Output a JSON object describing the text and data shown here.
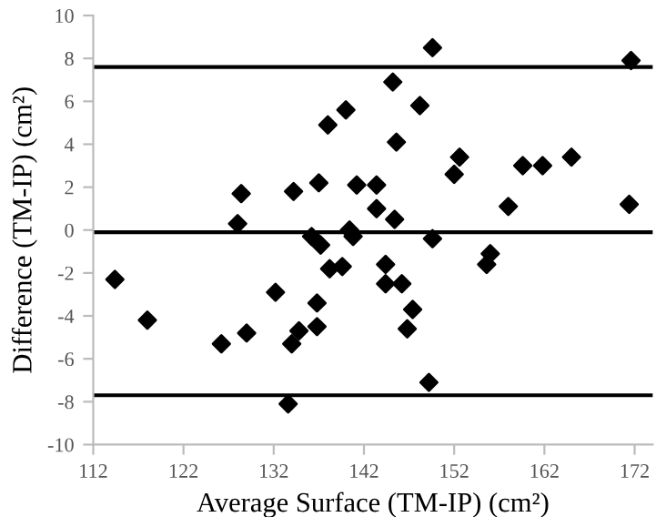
{
  "chart_data": {
    "type": "scatter",
    "xlabel": "Average Surface (TM-IP) (cm²)",
    "ylabel": "Difference (TM-IP) (cm²)",
    "marker": "diamond",
    "grid": false,
    "legend": false,
    "xlim": [
      112,
      174
    ],
    "xticks": [
      112,
      122,
      132,
      142,
      152,
      162,
      172
    ],
    "ylim": [
      -10,
      10
    ],
    "yticks": [
      -10,
      -8,
      -6,
      -4,
      -2,
      0,
      2,
      4,
      6,
      8,
      10
    ],
    "ref_lines": [
      {
        "axis": "y",
        "value": 7.6,
        "color": "#000000"
      },
      {
        "axis": "y",
        "value": -0.1,
        "color": "#000000"
      },
      {
        "axis": "y",
        "value": -7.7,
        "color": "#000000"
      }
    ],
    "series": [
      {
        "color": "#000000",
        "x": [
          128.4,
          128,
          134.2,
          137,
          138,
          140,
          141.2,
          143.4,
          143.4,
          136.2,
          137.2,
          140.4,
          140.8,
          149.6,
          171.6,
          145.2,
          148.2,
          145.6,
          152.6,
          152,
          159.6,
          161.8,
          165,
          145.4,
          158,
          171.4,
          149.6,
          114.4,
          118,
          126.2,
          129,
          132.2,
          134,
          134.8,
          136.8,
          136.8,
          138.2,
          139.6,
          133.6,
          144.4,
          144.4,
          146.2,
          147.4,
          146.8,
          149.2,
          155.6,
          156
        ],
        "values": [
          1.7,
          0.3,
          1.8,
          2.2,
          4.9,
          5.6,
          2.1,
          2.1,
          1.0,
          -0.3,
          -0.7,
          0,
          -0.3,
          8.5,
          7.9,
          6.9,
          5.8,
          4.1,
          3.4,
          2.6,
          3.0,
          3.0,
          3.4,
          0.5,
          1.1,
          1.2,
          -0.4,
          -2.3,
          -4.2,
          -5.3,
          -4.8,
          -2.9,
          -5.3,
          -4.7,
          -3.4,
          -4.5,
          -1.8,
          -1.7,
          -8.1,
          -1.6,
          -2.5,
          -2.5,
          -3.7,
          -4.6,
          -7.1,
          -1.6,
          -1.1
        ]
      }
    ]
  }
}
